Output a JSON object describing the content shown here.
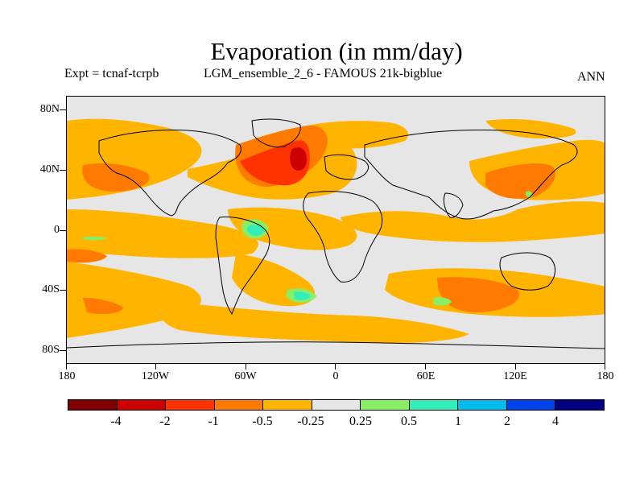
{
  "title": "Evaporation (in mm/day)",
  "expt_label": "Expt = tcnaf-tcrpb",
  "model_label": "LGM_ensemble_2_6 - FAMOUS 21k-bigblue",
  "season": "ANN",
  "y_axis": {
    "ticks": [
      "80N",
      "40N",
      "0",
      "40S",
      "80S"
    ],
    "values": [
      80,
      40,
      0,
      -40,
      -80
    ],
    "range": [
      -90,
      90
    ]
  },
  "x_axis": {
    "ticks": [
      "180",
      "120W",
      "60W",
      "0",
      "60E",
      "120E",
      "180"
    ],
    "values": [
      -180,
      -120,
      -60,
      0,
      60,
      120,
      180
    ],
    "range": [
      -180,
      180
    ]
  },
  "colorbar": {
    "colors": [
      "#800000",
      "#cc0000",
      "#ff3300",
      "#ff7a00",
      "#ffb400",
      "#e6e6e6",
      "#88ee66",
      "#33eebb",
      "#00bbee",
      "#0044ee",
      "#000080"
    ],
    "labels": [
      "-4",
      "-2",
      "-1",
      "-0.5",
      "-0.25",
      "0.25",
      "0.5",
      "1",
      "2",
      "4"
    ]
  },
  "colors": {
    "land_background": "#e6e6e6",
    "coastline": "#000000"
  }
}
